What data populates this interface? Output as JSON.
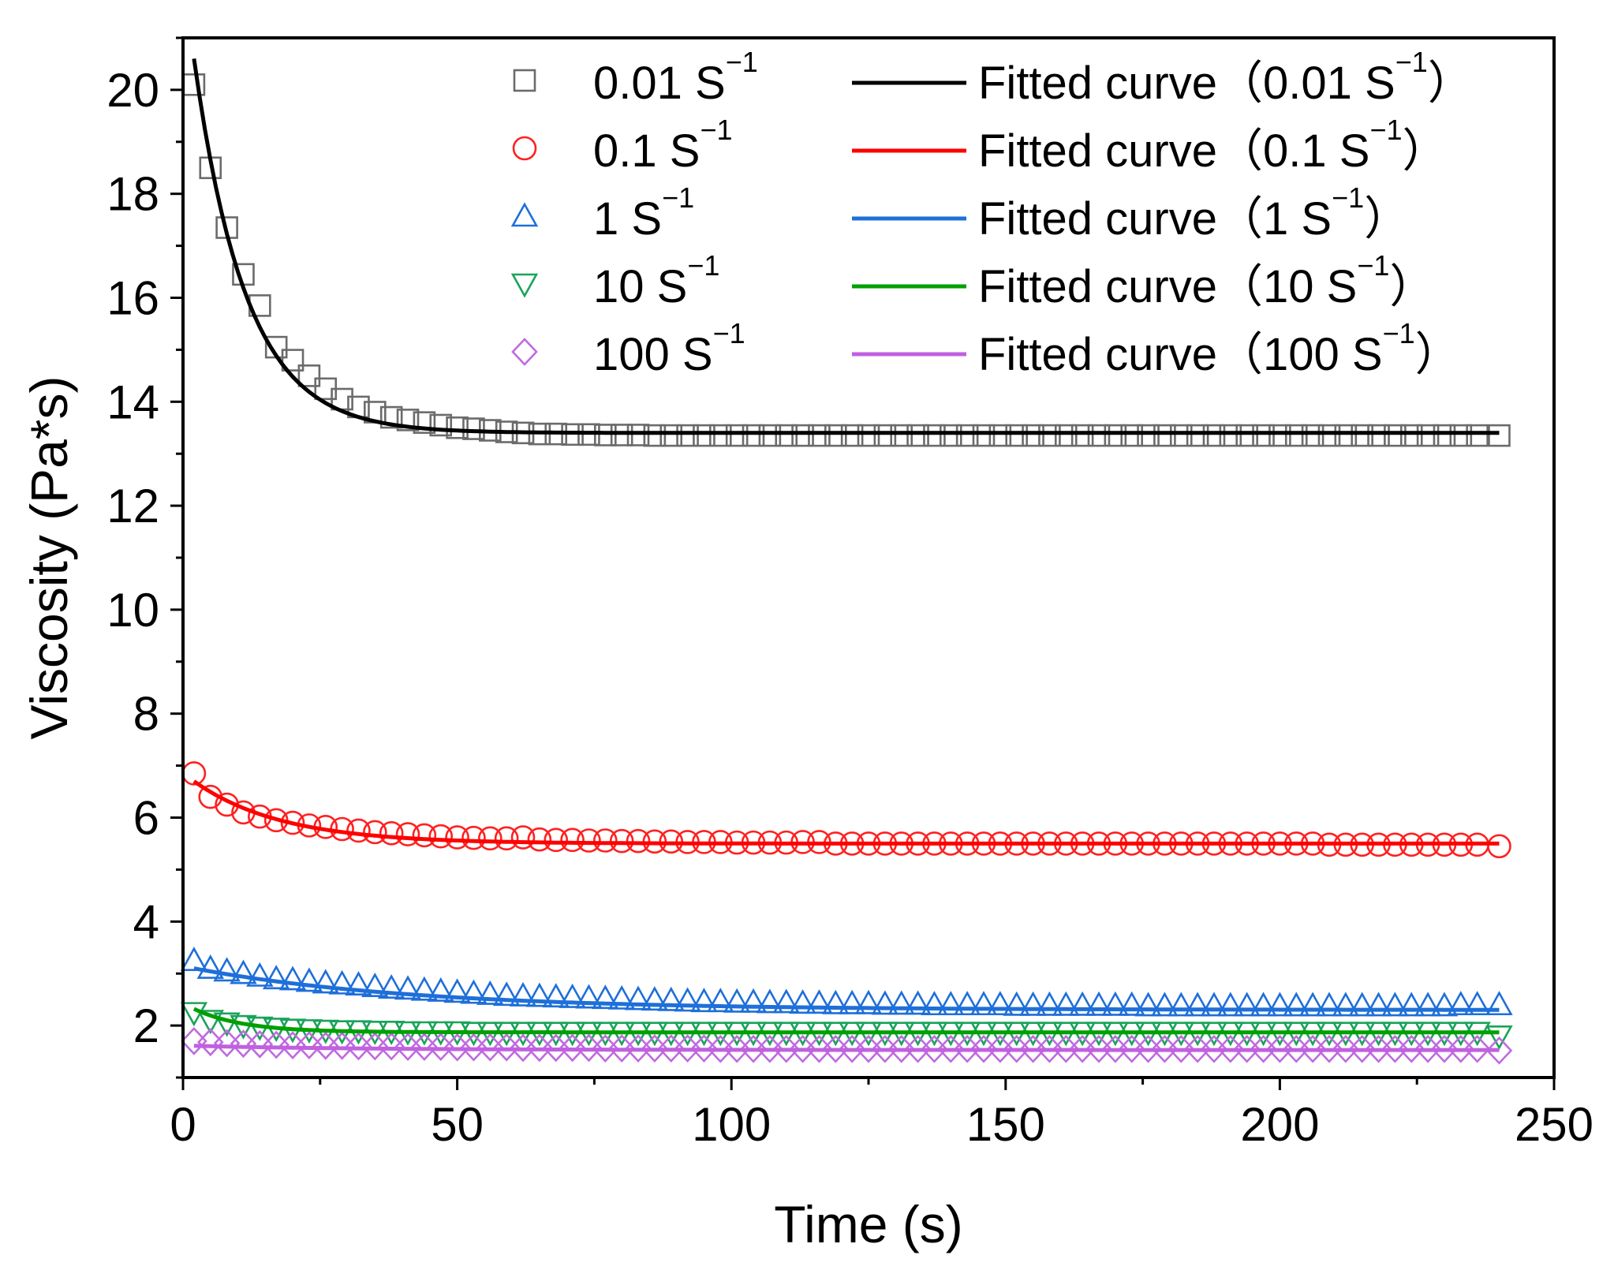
{
  "chart_data": {
    "type": "scatter",
    "title": "",
    "xlabel": "Time (s)",
    "ylabel": "Viscosity (Pa*s)",
    "xlim": [
      0,
      250
    ],
    "ylim": [
      1.0,
      21.0
    ],
    "xticks": [
      0,
      50,
      100,
      150,
      200,
      250
    ],
    "xtick_labels": [
      "0",
      "50",
      "100",
      "150",
      "200",
      "250"
    ],
    "yticks": [
      2,
      4,
      6,
      8,
      10,
      12,
      14,
      16,
      18,
      20
    ],
    "ytick_labels": [
      "2",
      "4",
      "6",
      "8",
      "10",
      "12",
      "14",
      "16",
      "18",
      "20"
    ],
    "grid": false,
    "legend_position": "top-right",
    "x": [
      2,
      5,
      8,
      11,
      14,
      17,
      20,
      23,
      26,
      29,
      32,
      35,
      38,
      41,
      44,
      47,
      50,
      53,
      56,
      59,
      62,
      65,
      68,
      71,
      74,
      77,
      80,
      83,
      86,
      89,
      92,
      95,
      98,
      101,
      104,
      107,
      110,
      113,
      116,
      119,
      122,
      125,
      128,
      131,
      134,
      137,
      140,
      143,
      146,
      149,
      152,
      155,
      158,
      161,
      164,
      167,
      170,
      173,
      176,
      179,
      182,
      185,
      188,
      191,
      194,
      197,
      200,
      203,
      206,
      209,
      212,
      215,
      218,
      221,
      224,
      227,
      230,
      233,
      236,
      240
    ],
    "series": [
      {
        "name": "0.01 S",
        "unit_suffix": "−1",
        "marker": "square",
        "color": "#6b6b6b",
        "fit_label": "Fitted curve（0.01 S",
        "fit_color": "#000000",
        "fit": {
          "a": 7.2,
          "tau": 9.5,
          "c": 13.4
        },
        "values": [
          20.1,
          18.5,
          17.35,
          16.45,
          15.85,
          15.05,
          14.8,
          14.5,
          14.25,
          14.05,
          13.9,
          13.8,
          13.7,
          13.65,
          13.6,
          13.55,
          13.5,
          13.48,
          13.45,
          13.42,
          13.4,
          13.38,
          13.38,
          13.37,
          13.37,
          13.36,
          13.36,
          13.36,
          13.35,
          13.35,
          13.35,
          13.35,
          13.35,
          13.35,
          13.35,
          13.35,
          13.35,
          13.35,
          13.35,
          13.35,
          13.35,
          13.35,
          13.35,
          13.35,
          13.35,
          13.35,
          13.35,
          13.35,
          13.35,
          13.35,
          13.35,
          13.35,
          13.35,
          13.35,
          13.35,
          13.35,
          13.35,
          13.35,
          13.35,
          13.35,
          13.35,
          13.35,
          13.35,
          13.35,
          13.35,
          13.35,
          13.35,
          13.35,
          13.35,
          13.35,
          13.35,
          13.35,
          13.35,
          13.35,
          13.35,
          13.35,
          13.35,
          13.35,
          13.35,
          13.35
        ]
      },
      {
        "name": "0.1 S",
        "unit_suffix": "−1",
        "marker": "circle",
        "color": "#ff2020",
        "fit_label": "Fitted curve（0.1 S",
        "fit_color": "#ff0000",
        "fit": {
          "a": 1.2,
          "tau": 16,
          "c": 5.5
        },
        "values": [
          6.85,
          6.4,
          6.25,
          6.1,
          6.02,
          5.95,
          5.9,
          5.85,
          5.82,
          5.78,
          5.75,
          5.72,
          5.7,
          5.68,
          5.66,
          5.64,
          5.62,
          5.61,
          5.6,
          5.6,
          5.62,
          5.58,
          5.57,
          5.57,
          5.56,
          5.56,
          5.55,
          5.55,
          5.54,
          5.54,
          5.53,
          5.53,
          5.53,
          5.52,
          5.52,
          5.52,
          5.52,
          5.53,
          5.53,
          5.5,
          5.5,
          5.5,
          5.5,
          5.5,
          5.5,
          5.5,
          5.5,
          5.5,
          5.5,
          5.5,
          5.5,
          5.5,
          5.5,
          5.5,
          5.5,
          5.5,
          5.5,
          5.5,
          5.5,
          5.5,
          5.5,
          5.5,
          5.5,
          5.5,
          5.5,
          5.5,
          5.5,
          5.5,
          5.5,
          5.48,
          5.48,
          5.48,
          5.48,
          5.48,
          5.48,
          5.48,
          5.48,
          5.48,
          5.48,
          5.45
        ]
      },
      {
        "name": "1 S",
        "unit_suffix": "−1",
        "marker": "triangle-up",
        "color": "#1e6fd9",
        "fit_label": "Fitted curve（1 S",
        "fit_color": "#1e6fd9",
        "fit": {
          "a": 0.8,
          "tau": 40,
          "c": 2.3
        },
        "values": [
          3.25,
          3.1,
          3.05,
          3.0,
          2.95,
          2.9,
          2.88,
          2.85,
          2.82,
          2.8,
          2.78,
          2.75,
          2.72,
          2.7,
          2.68,
          2.66,
          2.64,
          2.62,
          2.6,
          2.58,
          2.57,
          2.56,
          2.55,
          2.54,
          2.53,
          2.52,
          2.51,
          2.5,
          2.49,
          2.48,
          2.47,
          2.46,
          2.46,
          2.45,
          2.45,
          2.44,
          2.44,
          2.43,
          2.43,
          2.42,
          2.42,
          2.42,
          2.41,
          2.41,
          2.41,
          2.4,
          2.4,
          2.4,
          2.4,
          2.4,
          2.39,
          2.39,
          2.39,
          2.39,
          2.39,
          2.39,
          2.39,
          2.39,
          2.38,
          2.38,
          2.38,
          2.38,
          2.38,
          2.38,
          2.38,
          2.38,
          2.38,
          2.38,
          2.38,
          2.38,
          2.38,
          2.38,
          2.38,
          2.38,
          2.38,
          2.38,
          2.38,
          2.4,
          2.4,
          2.4
        ]
      },
      {
        "name": "10 S",
        "unit_suffix": "−1",
        "marker": "triangle-down",
        "color": "#1aa35a",
        "fit_label": "Fitted curve（10 S",
        "fit_color": "#00a000",
        "fit": {
          "a": 0.45,
          "tau": 9,
          "c": 1.87
        },
        "values": [
          2.25,
          2.1,
          2.05,
          2.0,
          1.97,
          1.95,
          1.93,
          1.92,
          1.91,
          1.9,
          1.9,
          1.89,
          1.89,
          1.88,
          1.88,
          1.88,
          1.88,
          1.87,
          1.87,
          1.87,
          1.87,
          1.87,
          1.87,
          1.87,
          1.87,
          1.87,
          1.87,
          1.87,
          1.87,
          1.87,
          1.87,
          1.87,
          1.87,
          1.87,
          1.87,
          1.87,
          1.87,
          1.87,
          1.87,
          1.87,
          1.87,
          1.87,
          1.87,
          1.87,
          1.87,
          1.87,
          1.87,
          1.87,
          1.87,
          1.87,
          1.87,
          1.87,
          1.87,
          1.87,
          1.87,
          1.87,
          1.87,
          1.87,
          1.87,
          1.87,
          1.87,
          1.87,
          1.87,
          1.87,
          1.87,
          1.87,
          1.87,
          1.87,
          1.87,
          1.87,
          1.87,
          1.87,
          1.87,
          1.87,
          1.87,
          1.87,
          1.87,
          1.87,
          1.87,
          1.8
        ]
      },
      {
        "name": "100 S",
        "unit_suffix": "−1",
        "marker": "diamond",
        "color": "#c06ae0",
        "fit_label": "Fitted curve（100 S",
        "fit_color": "#c060e0",
        "fit": {
          "a": 0.08,
          "tau": 30,
          "c": 1.53
        },
        "values": [
          1.7,
          1.68,
          1.66,
          1.65,
          1.64,
          1.63,
          1.62,
          1.62,
          1.61,
          1.61,
          1.6,
          1.6,
          1.6,
          1.59,
          1.59,
          1.59,
          1.58,
          1.58,
          1.58,
          1.58,
          1.57,
          1.57,
          1.57,
          1.57,
          1.57,
          1.56,
          1.56,
          1.56,
          1.56,
          1.56,
          1.56,
          1.56,
          1.55,
          1.55,
          1.55,
          1.55,
          1.55,
          1.55,
          1.55,
          1.55,
          1.55,
          1.55,
          1.55,
          1.55,
          1.55,
          1.55,
          1.55,
          1.55,
          1.55,
          1.55,
          1.55,
          1.55,
          1.55,
          1.55,
          1.55,
          1.55,
          1.55,
          1.55,
          1.55,
          1.55,
          1.55,
          1.55,
          1.55,
          1.55,
          1.55,
          1.55,
          1.55,
          1.55,
          1.55,
          1.55,
          1.55,
          1.55,
          1.55,
          1.55,
          1.55,
          1.55,
          1.55,
          1.55,
          1.55,
          1.52
        ]
      }
    ],
    "fit_close_paren": "）"
  }
}
